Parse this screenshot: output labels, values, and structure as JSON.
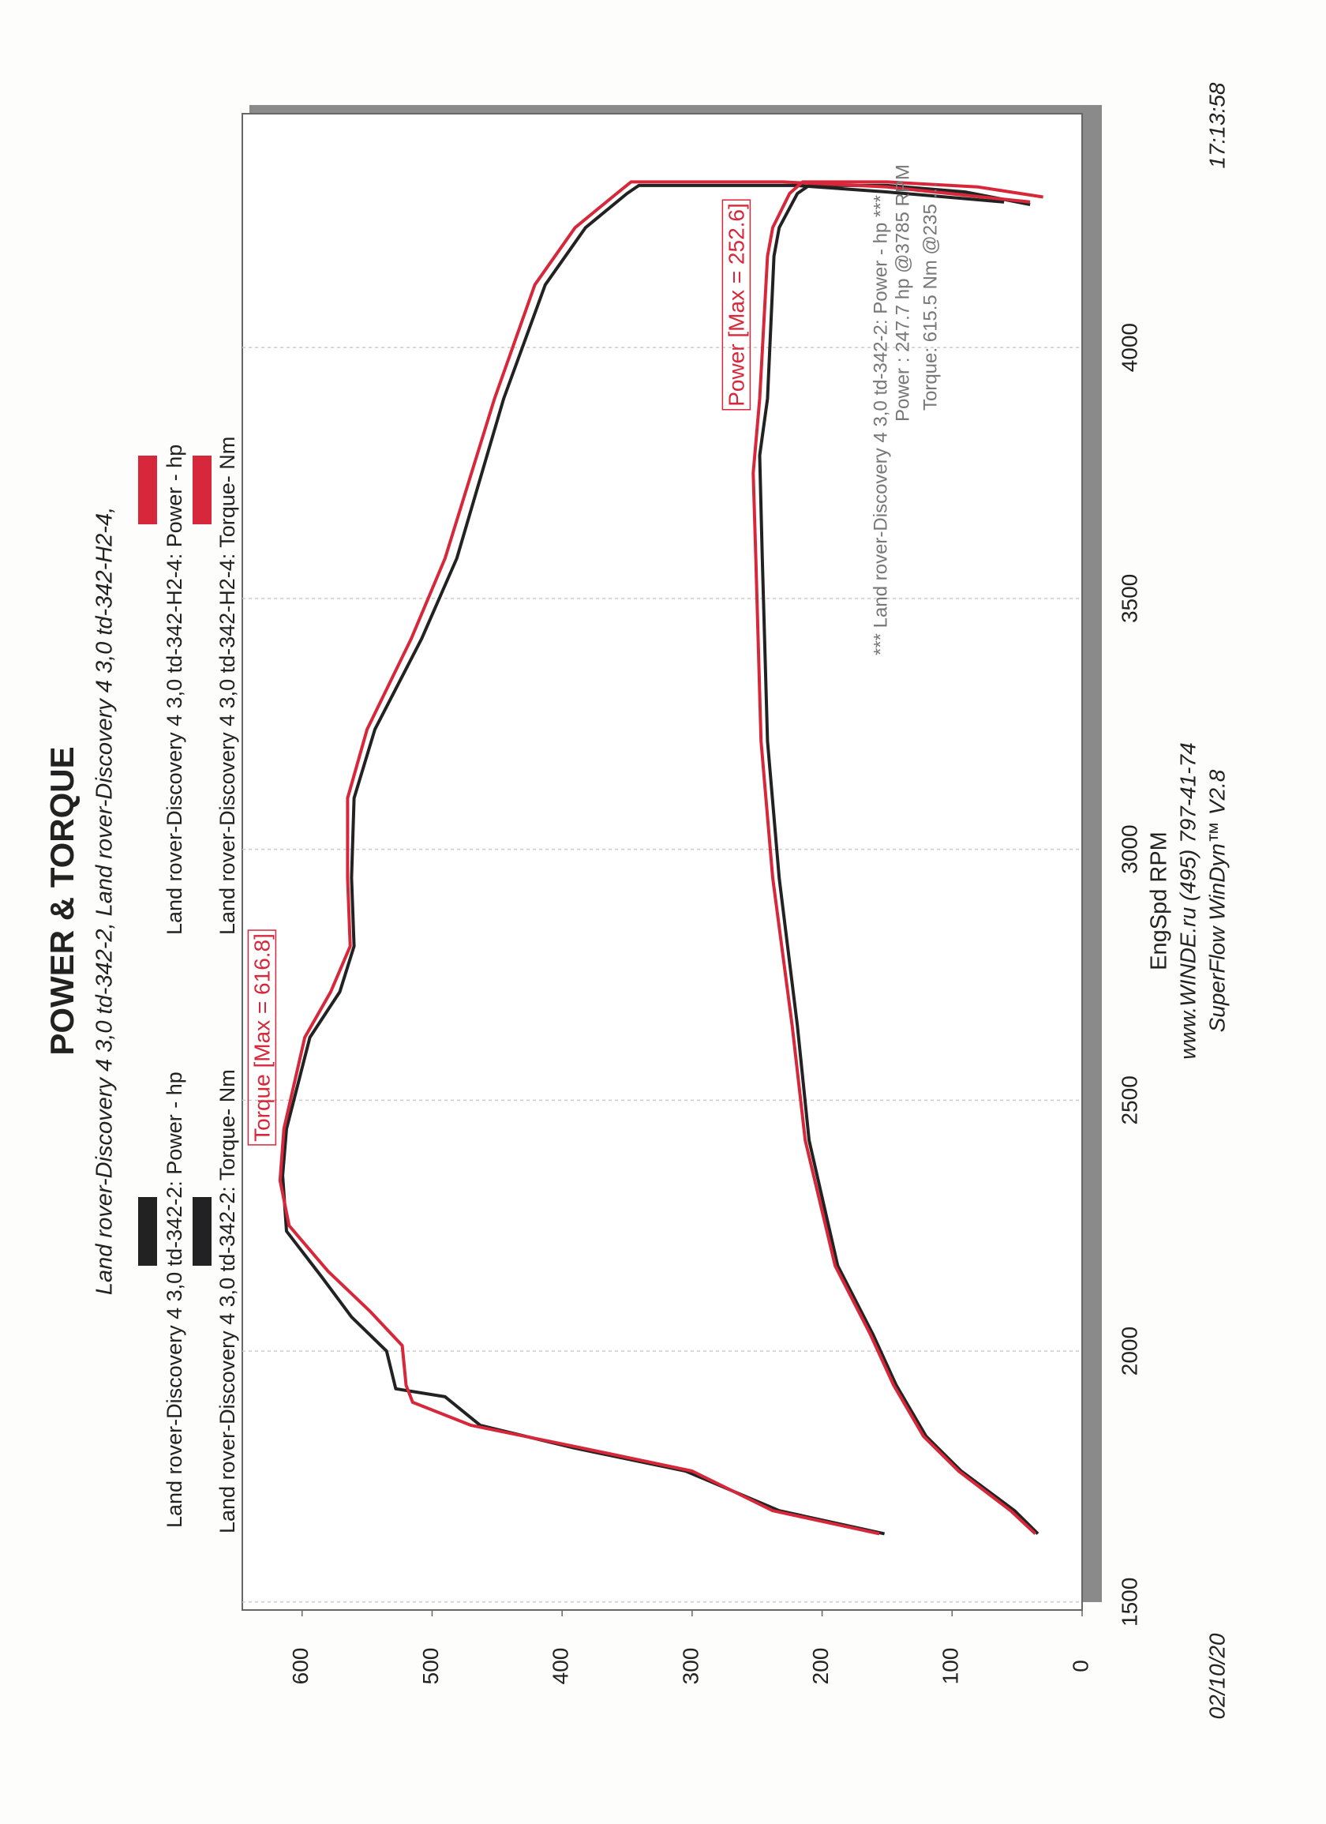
{
  "chart_data": {
    "type": "line",
    "title": "POWER & TORQUE",
    "subtitle": "Land rover-Discovery 4 3,0 td-342-2, Land rover-Discovery 4 3,0 td-342-H2-4,",
    "x_label": "EngSpd  RPM",
    "xlim": [
      1484,
      4466
    ],
    "xticks": [
      1500,
      2000,
      2500,
      3000,
      3500,
      4000
    ],
    "ylim": [
      0,
      646
    ],
    "yticks": [
      0,
      100,
      200,
      300,
      400,
      500,
      600
    ],
    "grid": true,
    "series": [
      {
        "name": "Land rover-Discovery 4 3,0 td-342-2: Power -  hp",
        "color": "#222222",
        "x": [
          1636,
          1682,
          1761,
          1830,
          1932,
          2034,
          2170,
          2420,
          2648,
          2943,
          3216,
          3580,
          3785,
          3898,
          4182,
          4239,
          4307,
          4323,
          4323,
          4310,
          4285
        ],
        "values": [
          34,
          52,
          93,
          120,
          143,
          161,
          188,
          210,
          219,
          233,
          242,
          246,
          248,
          242,
          237,
          233,
          219,
          210,
          150,
          90,
          40
        ]
      },
      {
        "name": "Land rover-Discovery 4 3,0 td-342-2: Torque-  Nm",
        "color": "#222222",
        "x": [
          1636,
          1682,
          1761,
          1807,
          1852,
          1909,
          1925,
          2000,
          2068,
          2148,
          2239,
          2350,
          2443,
          2625,
          2716,
          2807,
          2943,
          3102,
          3239,
          3420,
          3580,
          3898,
          4125,
          4239,
          4307,
          4323,
          4323,
          4310,
          4290
        ],
        "values": [
          152,
          233,
          305,
          391,
          463,
          490,
          528,
          535,
          562,
          585,
          612,
          615,
          612,
          594,
          571,
          560,
          562,
          560,
          544,
          508,
          481,
          445,
          413,
          382,
          350,
          341,
          220,
          150,
          60
        ]
      },
      {
        "name": "Land rover-Discovery 4 3,0 td-342-H2-4: Power -  hp",
        "color": "#d6283a",
        "x": [
          1636,
          1682,
          1761,
          1830,
          1932,
          2034,
          2170,
          2420,
          2648,
          2943,
          3216,
          3580,
          3750,
          3898,
          4182,
          4239,
          4307,
          4330,
          4330,
          4320,
          4300
        ],
        "values": [
          36,
          55,
          95,
          122,
          145,
          163,
          190,
          213,
          223,
          238,
          247,
          251,
          253,
          248,
          242,
          238,
          225,
          215,
          150,
          80,
          30
        ]
      },
      {
        "name": "Land rover-Discovery 4 3,0 td-342-H2-4: Torque-  Nm",
        "color": "#d6283a",
        "x": [
          1636,
          1682,
          1761,
          1807,
          1852,
          1898,
          1932,
          2011,
          2080,
          2159,
          2250,
          2340,
          2443,
          2625,
          2716,
          2807,
          2943,
          3102,
          3239,
          3420,
          3580,
          3898,
          4125,
          4239,
          4307,
          4330,
          4330,
          4320,
          4290
        ],
        "values": [
          156,
          238,
          300,
          385,
          470,
          515,
          520,
          523,
          548,
          580,
          610,
          617,
          614,
          598,
          578,
          563,
          565,
          565,
          550,
          516,
          490,
          452,
          421,
          390,
          358,
          347,
          230,
          150,
          40
        ]
      }
    ],
    "annotations": [
      "Torque [Max = 616.8]",
      "Power  [Max = 252.6]"
    ],
    "info_lines": [
      "*** Land rover-Discovery 4 3,0 td-342-2: Power - hp  ***",
      "Power :  247.7 hp    @3785 RPM",
      "Torque:  615.5 Nm    @235 ..."
    ],
    "footer": [
      "www.WINDE.ru  (495) 797-41-74",
      "SuperFlow WinDyn™ V2.8"
    ],
    "date": "02/10/20",
    "time": "17:13:58"
  }
}
